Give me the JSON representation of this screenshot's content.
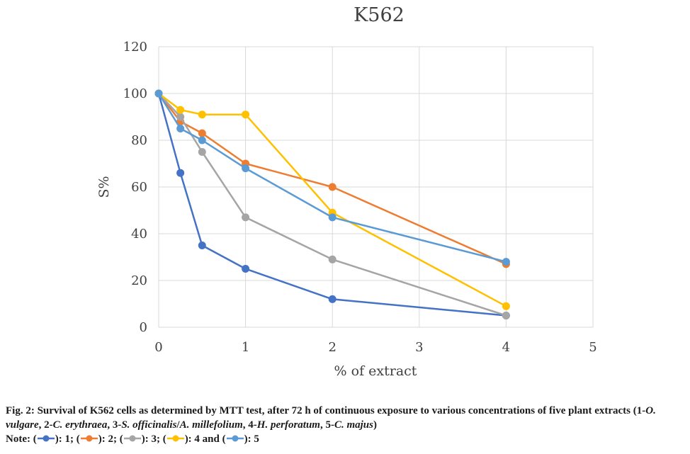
{
  "chart_data": {
    "type": "line",
    "title": "K562",
    "xlabel": "% of extract",
    "ylabel": "S%",
    "xlim": [
      0,
      5
    ],
    "ylim": [
      0,
      120
    ],
    "xticks": [
      0,
      1,
      2,
      3,
      4,
      5
    ],
    "yticks": [
      0,
      20,
      40,
      60,
      80,
      100,
      120
    ],
    "grid": true,
    "legend": "none",
    "series": [
      {
        "name": "1",
        "color": "#4472c4",
        "x": [
          0,
          0.25,
          0.5,
          1,
          2,
          4
        ],
        "y": [
          100,
          66,
          35,
          25,
          12,
          5
        ]
      },
      {
        "name": "2",
        "color": "#ed7d31",
        "x": [
          0,
          0.25,
          0.5,
          1,
          2,
          4
        ],
        "y": [
          100,
          88,
          83,
          70,
          60,
          27
        ]
      },
      {
        "name": "3",
        "color": "#a5a5a5",
        "x": [
          0,
          0.25,
          0.5,
          1,
          2,
          4
        ],
        "y": [
          100,
          90,
          75,
          47,
          29,
          5
        ]
      },
      {
        "name": "4",
        "color": "#ffc000",
        "x": [
          0,
          0.25,
          0.5,
          1,
          2,
          4
        ],
        "y": [
          100,
          93,
          91,
          91,
          49,
          9
        ]
      },
      {
        "name": "5",
        "color": "#5b9bd5",
        "x": [
          0,
          0.25,
          0.5,
          1,
          2,
          4
        ],
        "y": [
          100,
          85,
          80,
          68,
          47,
          28
        ]
      }
    ]
  },
  "caption": {
    "fig_label": "Fig. 2: Survival of K562 cells as determined by MTT test, after 72 h of continuous exposure to various concentrations of five plant extracts (1-",
    "sp1": "O. vulgare",
    "sep1": ", 2-",
    "sp2": "C. erythraea",
    "sep2": ", 3-",
    "sp3": "S. officinalis",
    "sep3": "/",
    "sp4": "A. millefolium",
    "sep4": ", 4-",
    "sp5": "H. perforatum",
    "sep5": ", 5-",
    "sp6": "C. majus",
    "end": ")",
    "note": {
      "prefix": "Note: (",
      "items": [
        {
          "label": "): 1; (",
          "color": "#4472c4"
        },
        {
          "label": "): 2; (",
          "color": "#ed7d31"
        },
        {
          "label": "): 3; (",
          "color": "#a5a5a5"
        },
        {
          "label": "): 4 and (",
          "color": "#ffc000"
        },
        {
          "label": "): 5",
          "color": "#5b9bd5"
        }
      ]
    }
  }
}
